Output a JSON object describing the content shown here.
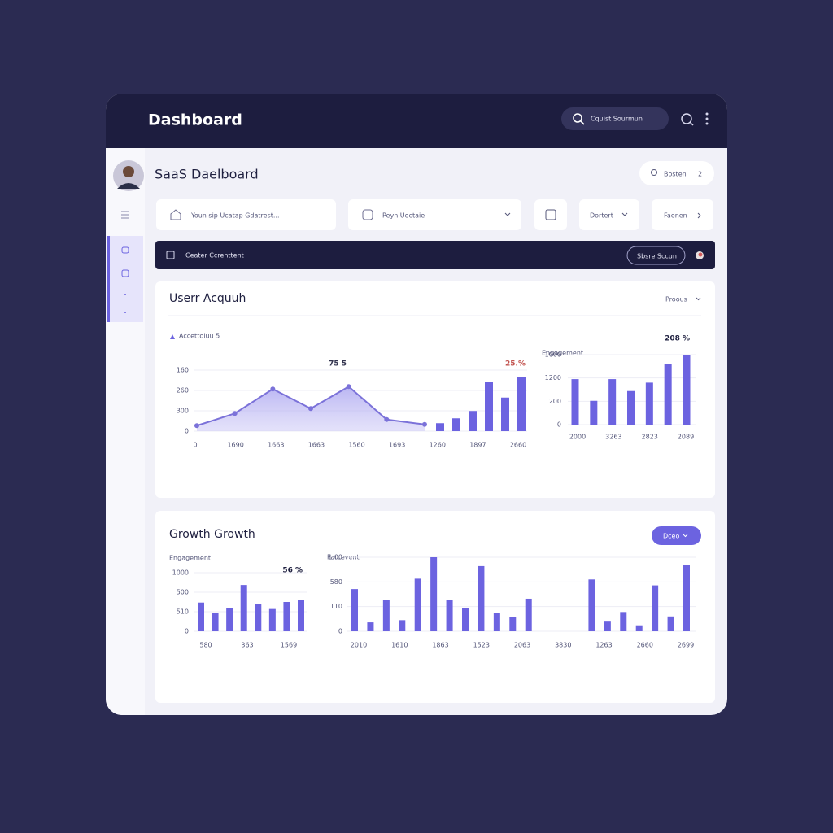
{
  "header": {
    "title": "Dashboard",
    "search": "Cquist Sourmun"
  },
  "page": {
    "title": "SaaS Daelboard",
    "button": "Bosten",
    "button_badge": "2"
  },
  "filters": {
    "search": "Youn sip Ucatap Gdatrest...",
    "select1": "Peyn Uoctaie",
    "select2": "Dortert",
    "button": "Faenen"
  },
  "banner": {
    "text": "Ceater Ccrenttent",
    "button": "Sbsre Sccun"
  },
  "panels": [
    {
      "title": "Userr Acquuh",
      "menu": "Proous",
      "charts": [
        {
          "type": "combo",
          "title": "Accettoluu 5",
          "annotations": [
            "75 5",
            "25.%"
          ],
          "y_labels": [
            "160",
            "260",
            "300",
            "0"
          ],
          "x_labels": [
            "0",
            "1690",
            "1663",
            "1663",
            "1560",
            "1693",
            "1260",
            "1897",
            "2660"
          ],
          "ylim": [
            0,
            100
          ],
          "series": [
            {
              "type": "line",
              "color": "#7b72d9",
              "values": [
                9,
                29,
                69,
                37,
                73,
                19,
                11
              ]
            },
            {
              "type": "bar",
              "color": "#6c63e0",
              "values": [
                13,
                21,
                33,
                81,
                55,
                89
              ]
            }
          ]
        },
        {
          "type": "bar",
          "title": "Engagement",
          "annotations": [
            "208 %"
          ],
          "y_labels": [
            "1000",
            "1200",
            "200",
            "0"
          ],
          "x_labels": [
            "2000",
            "3263",
            "2823",
            "2089"
          ],
          "ylim": [
            0,
            100
          ],
          "series": [
            {
              "type": "bar",
              "color": "#6c63e0",
              "values": [
                65,
                34,
                65,
                48,
                60,
                87,
                100
              ]
            }
          ]
        }
      ]
    },
    {
      "title": "Growth Growth",
      "button": "Dceo",
      "charts": [
        {
          "type": "bar",
          "title": "Engagement",
          "annotations": [
            "56 %"
          ],
          "y_labels": [
            "1000",
            "500",
            "510",
            "0"
          ],
          "x_labels": [
            "580",
            "363",
            "1569"
          ],
          "ylim": [
            0,
            100
          ],
          "series": [
            {
              "type": "bar",
              "color": "#6c63e0",
              "values": [
                49,
                31,
                39,
                79,
                46,
                38,
                50,
                53
              ]
            }
          ]
        },
        {
          "type": "bar",
          "title": "Parcevent",
          "y_labels": [
            "1.00",
            "580",
            "110",
            "0"
          ],
          "x_labels": [
            "2010",
            "1610",
            "1863",
            "1523",
            "2063",
            "3830",
            "1263",
            "2660",
            "2699"
          ],
          "ylim": [
            0,
            100
          ],
          "series": [
            {
              "type": "bar",
              "color": "#6c63e0",
              "values": [
                57,
                12,
                42,
                15,
                71,
                100,
                42,
                31,
                88,
                25,
                19,
                44,
                null,
                null,
                null,
                70,
                13,
                26,
                8,
                62,
                20,
                89
              ]
            }
          ]
        }
      ]
    }
  ]
}
